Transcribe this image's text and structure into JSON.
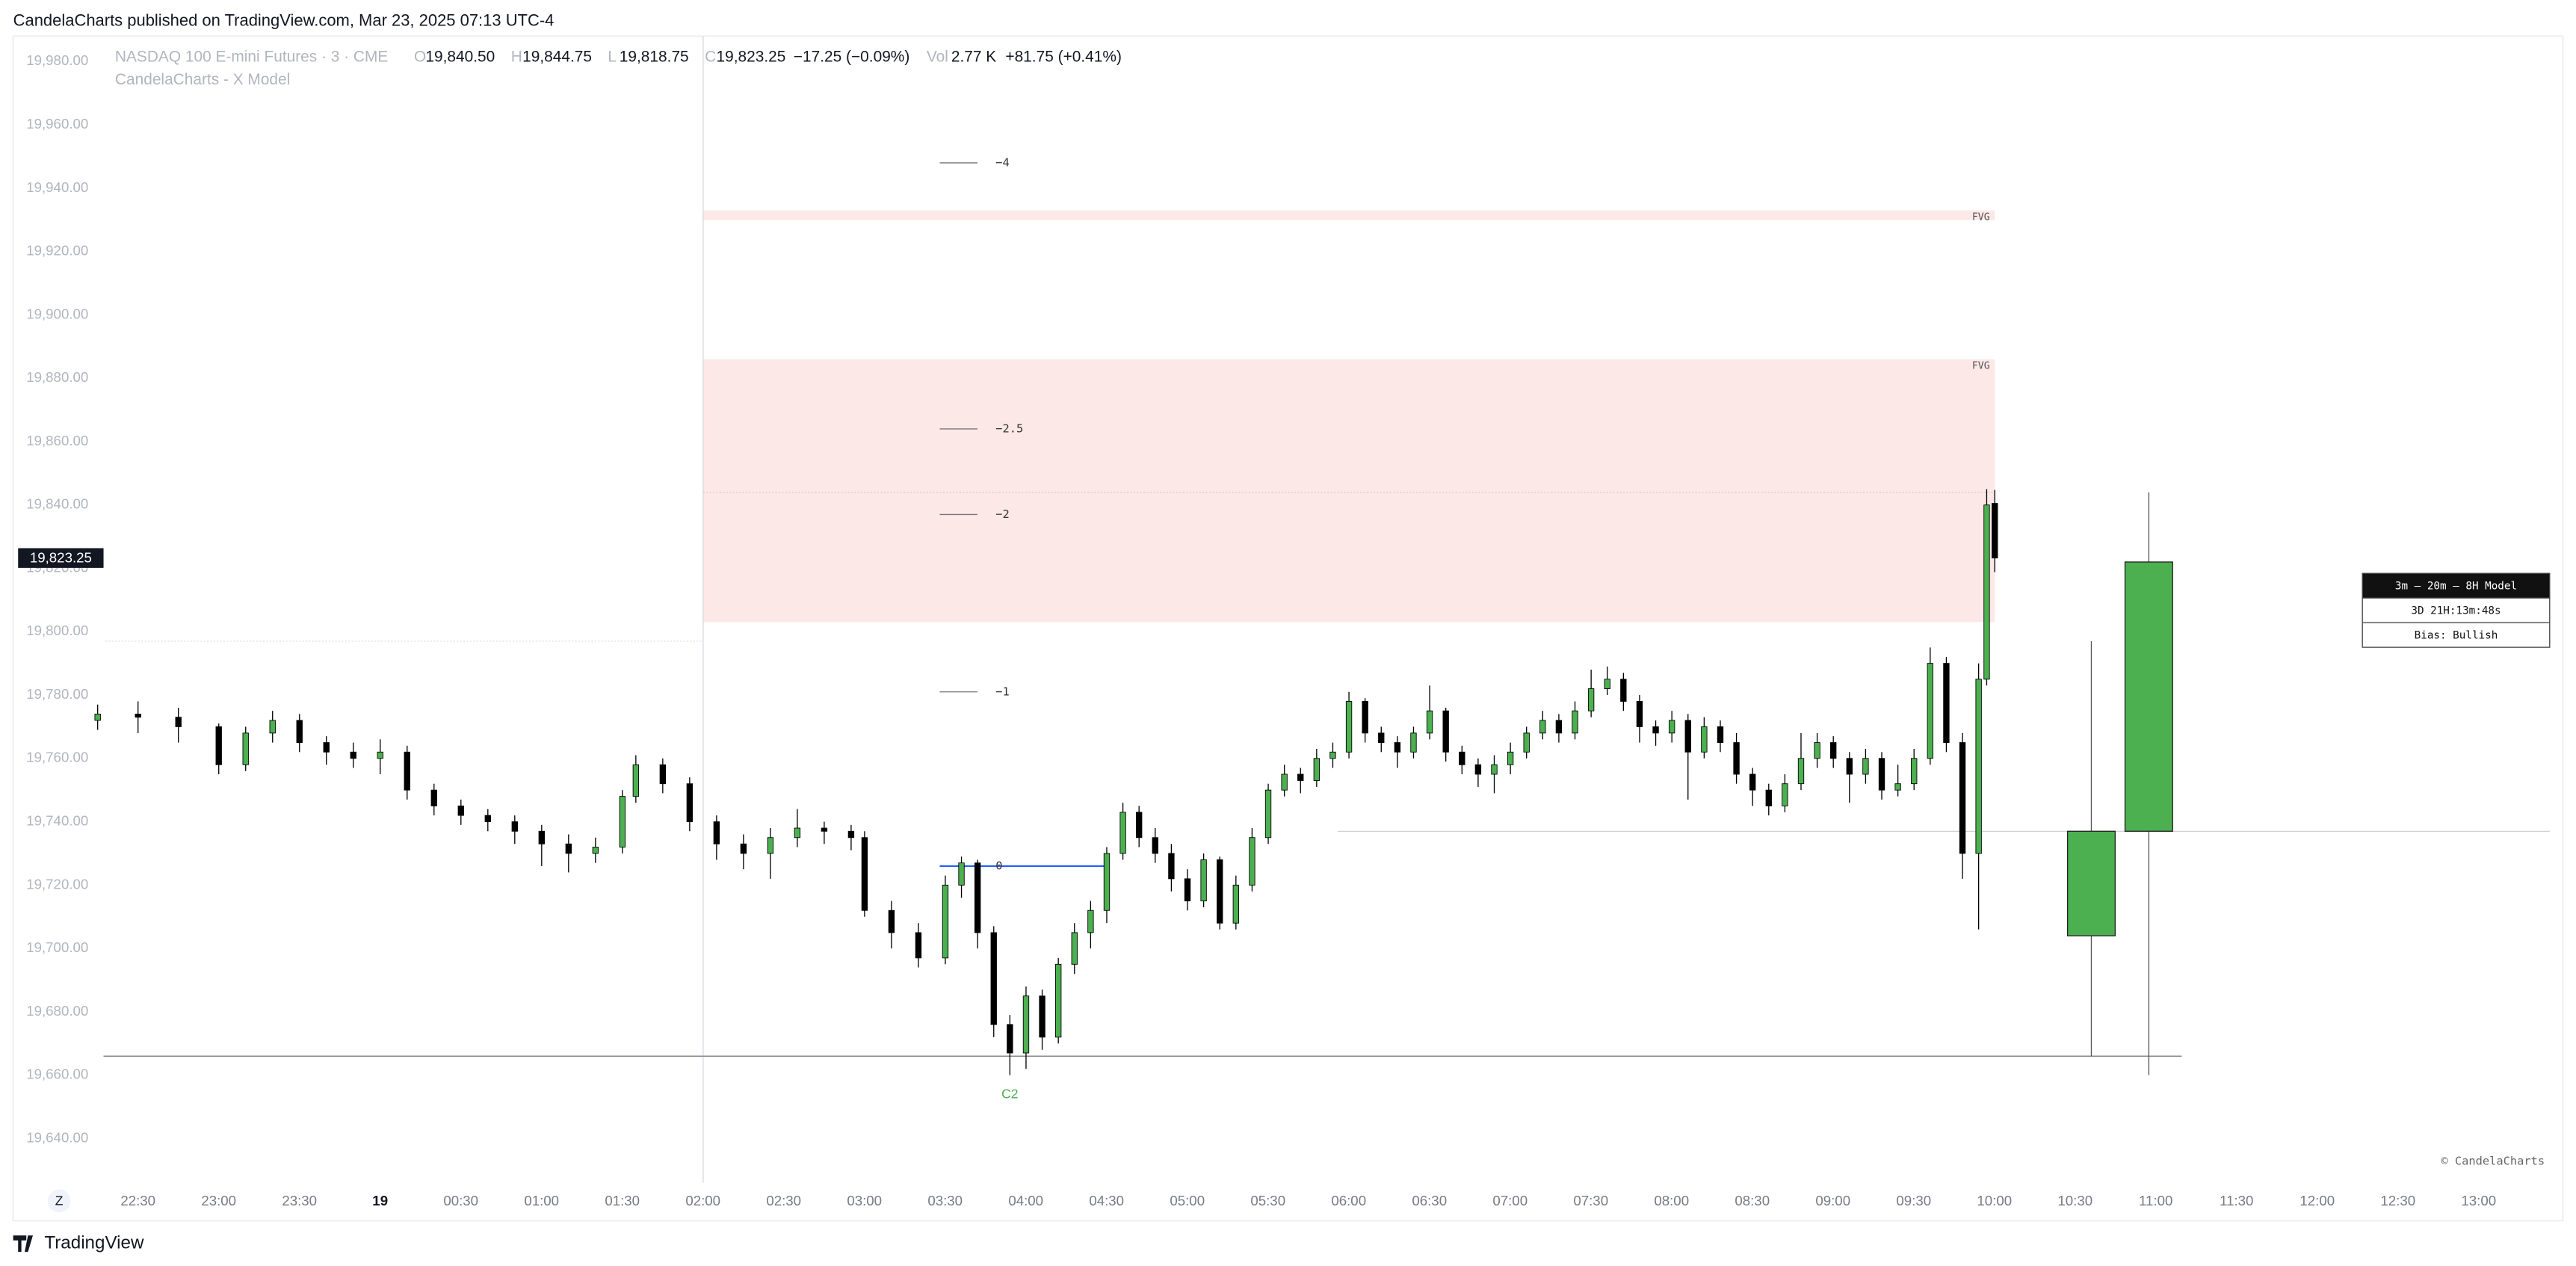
{
  "header": {
    "publisher": "CandelaCharts published on TradingView.com, Mar 23, 2025 07:13 UTC-4",
    "brand": "TradingView"
  },
  "chart_data": {
    "type": "candlestick",
    "symbol": "NASDAQ 100 E-mini Futures · 3 · CME",
    "indicator": "CandelaCharts - X Model",
    "ohlc_legend": [
      {
        "key": "O",
        "value": "19,840.50"
      },
      {
        "key": "H",
        "value": "19,844.75"
      },
      {
        "key": "L",
        "value": "19,818.75"
      },
      {
        "key": "C",
        "value": "19,823.25"
      }
    ],
    "change": "−17.25 (−0.09%)",
    "volume_key": "Vol",
    "volume": "2.77 K",
    "volume_change": "+81.75 (+0.41%)",
    "last_price": {
      "value": 19823.25,
      "label": "19,823.25"
    },
    "up_color": "#4caf50",
    "down_color": "#000000",
    "x": [
      "22:15",
      "22:30",
      "22:45",
      "23:00",
      "23:10",
      "23:20",
      "23:30",
      "23:40",
      "23:50",
      "00:00",
      "00:10",
      "00:20",
      "00:30",
      "00:40",
      "00:50",
      "01:00",
      "01:10",
      "01:20",
      "01:30",
      "01:35",
      "01:45",
      "01:55",
      "02:05",
      "02:15",
      "02:25",
      "02:35",
      "02:45",
      "02:55",
      "03:00",
      "03:10",
      "03:20",
      "03:30",
      "03:36",
      "03:42",
      "03:48",
      "03:54",
      "04:00",
      "04:06",
      "04:12",
      "04:18",
      "04:24",
      "04:30",
      "04:36",
      "04:42",
      "04:48",
      "04:54",
      "05:00",
      "05:06",
      "05:12",
      "05:18",
      "05:24",
      "05:30",
      "05:36",
      "05:42",
      "05:48",
      "05:54",
      "06:00",
      "06:06",
      "06:12",
      "06:18",
      "06:24",
      "06:30",
      "06:36",
      "06:42",
      "06:48",
      "06:54",
      "07:00",
      "07:06",
      "07:12",
      "07:18",
      "07:24",
      "07:30",
      "07:36",
      "07:42",
      "07:48",
      "07:54",
      "08:00",
      "08:06",
      "08:12",
      "08:18",
      "08:24",
      "08:30",
      "08:36",
      "08:42",
      "08:48",
      "08:54",
      "09:00",
      "09:06",
      "09:12",
      "09:18",
      "09:24",
      "09:30",
      "09:36",
      "09:42",
      "09:48",
      "09:54",
      "09:57",
      "10:00"
    ],
    "open": [
      19772,
      19774,
      19773,
      19770,
      19758,
      19768,
      19772,
      19765,
      19762,
      19760,
      19762,
      19750,
      19745,
      19742,
      19740,
      19737,
      19733,
      19730,
      19732,
      19748,
      19758,
      19752,
      19740,
      19733,
      19730,
      19735,
      19738,
      19737,
      19735,
      19712,
      19705,
      19697,
      19720,
      19727,
      19705,
      19676,
      19667,
      19685,
      19672,
      19695,
      19705,
      19712,
      19730,
      19743,
      19735,
      19730,
      19722,
      19715,
      19728,
      19708,
      19720,
      19735,
      19750,
      19755,
      19753,
      19760,
      19762,
      19778,
      19768,
      19765,
      19762,
      19768,
      19775,
      19762,
      19758,
      19755,
      19758,
      19762,
      19768,
      19772,
      19768,
      19775,
      19782,
      19785,
      19778,
      19770,
      19768,
      19772,
      19762,
      19770,
      19765,
      19755,
      19750,
      19745,
      19752,
      19760,
      19765,
      19760,
      19755,
      19760,
      19750,
      19752,
      19760,
      19790,
      19765,
      19730,
      19785,
      19840.5
    ],
    "high": [
      19777,
      19778,
      19776,
      19771,
      19770,
      19775,
      19774,
      19767,
      19765,
      19766,
      19764,
      19752,
      19747,
      19744,
      19742,
      19739,
      19736,
      19735,
      19750,
      19761,
      19760,
      19754,
      19742,
      19736,
      19738,
      19744,
      19740,
      19739,
      19737,
      19715,
      19708,
      19723,
      19729,
      19728,
      19707,
      19679,
      19688,
      19687,
      19697,
      19708,
      19715,
      19732,
      19746,
      19745,
      19738,
      19733,
      19725,
      19730,
      19729,
      19723,
      19738,
      19752,
      19758,
      19757,
      19763,
      19765,
      19781,
      19779,
      19770,
      19767,
      19770,
      19783,
      19776,
      19764,
      19760,
      19761,
      19765,
      19770,
      19775,
      19774,
      19778,
      19788,
      19789,
      19787,
      19780,
      19772,
      19775,
      19774,
      19773,
      19772,
      19768,
      19757,
      19752,
      19755,
      19768,
      19768,
      19767,
      19762,
      19763,
      19762,
      19758,
      19763,
      19795,
      19792,
      19768,
      19790,
      19845,
      19844.75
    ],
    "low": [
      19769,
      19768,
      19765,
      19755,
      19756,
      19765,
      19762,
      19758,
      19757,
      19755,
      19747,
      19742,
      19739,
      19737,
      19733,
      19726,
      19724,
      19727,
      19730,
      19746,
      19749,
      19737,
      19728,
      19725,
      19722,
      19732,
      19733,
      19731,
      19710,
      19700,
      19694,
      19695,
      19716,
      19700,
      19672,
      19660,
      19662,
      19668,
      19670,
      19692,
      19700,
      19708,
      19728,
      19732,
      19727,
      19718,
      19712,
      19713,
      19706,
      19706,
      19718,
      19733,
      19748,
      19749,
      19751,
      19757,
      19760,
      19765,
      19762,
      19757,
      19760,
      19766,
      19759,
      19755,
      19751,
      19749,
      19755,
      19760,
      19766,
      19765,
      19766,
      19773,
      19780,
      19775,
      19765,
      19764,
      19765,
      19747,
      19760,
      19762,
      19752,
      19745,
      19742,
      19743,
      19750,
      19757,
      19757,
      19746,
      19752,
      19747,
      19748,
      19750,
      19758,
      19762,
      19722,
      19706,
      19783,
      19818.75
    ],
    "close": [
      19774,
      19773,
      19770,
      19758,
      19768,
      19772,
      19765,
      19762,
      19760,
      19762,
      19750,
      19745,
      19742,
      19740,
      19737,
      19733,
      19730,
      19732,
      19748,
      19758,
      19752,
      19740,
      19733,
      19730,
      19735,
      19738,
      19737,
      19735,
      19712,
      19705,
      19697,
      19720,
      19727,
      19705,
      19676,
      19667,
      19685,
      19672,
      19695,
      19705,
      19712,
      19730,
      19743,
      19735,
      19730,
      19722,
      19715,
      19728,
      19708,
      19720,
      19735,
      19750,
      19755,
      19753,
      19760,
      19762,
      19778,
      19768,
      19765,
      19762,
      19768,
      19775,
      19762,
      19758,
      19755,
      19758,
      19762,
      19768,
      19772,
      19768,
      19775,
      19782,
      19785,
      19778,
      19770,
      19768,
      19772,
      19762,
      19770,
      19765,
      19755,
      19750,
      19745,
      19752,
      19760,
      19765,
      19760,
      19755,
      19760,
      19750,
      19752,
      19760,
      19790,
      19765,
      19730,
      19785,
      19840,
      19823.25
    ],
    "htf_candles": {
      "open": [
        19704,
        19737
      ],
      "high": [
        19797,
        19844
      ],
      "low": [
        19666,
        19660
      ],
      "close": [
        19737,
        19822
      ]
    },
    "fvg": [
      {
        "label": "FVG",
        "top": 19933,
        "bottom": 19930,
        "start": "02:00",
        "end": "10:00"
      },
      {
        "label": "FVG",
        "top": 19886,
        "bottom": 19803,
        "start": "02:00",
        "end": "10:00"
      }
    ],
    "levels": [
      {
        "label": "−4",
        "value": 19948
      },
      {
        "label": "−2.5",
        "value": 19864
      },
      {
        "label": "−2",
        "value": 19837
      },
      {
        "label": "−1",
        "value": 19781
      },
      {
        "label": "0",
        "value": 19726
      }
    ],
    "low_line": 19666,
    "annotation": "C2",
    "ylim": [
      19626,
      19988
    ],
    "yticks": [
      {
        "value": 19640,
        "label": "19,640.00"
      },
      {
        "value": 19660,
        "label": "19,660.00"
      },
      {
        "value": 19680,
        "label": "19,680.00"
      },
      {
        "value": 19700,
        "label": "19,700.00"
      },
      {
        "value": 19720,
        "label": "19,720.00"
      },
      {
        "value": 19740,
        "label": "19,740.00"
      },
      {
        "value": 19760,
        "label": "19,760.00"
      },
      {
        "value": 19780,
        "label": "19,780.00"
      },
      {
        "value": 19800,
        "label": "19,800.00"
      },
      {
        "value": 19820,
        "label": "19,820.00"
      },
      {
        "value": 19840,
        "label": "19,840.00"
      },
      {
        "value": 19860,
        "label": "19,860.00"
      },
      {
        "value": 19880,
        "label": "19,880.00"
      },
      {
        "value": 19900,
        "label": "19,900.00"
      },
      {
        "value": 19920,
        "label": "19,920.00"
      },
      {
        "value": 19940,
        "label": "19,940.00"
      },
      {
        "value": 19960,
        "label": "19,960.00"
      },
      {
        "value": 19980,
        "label": "19,980.00"
      }
    ],
    "xticks": [
      "22:30",
      "23:00",
      "23:30",
      "19",
      "00:30",
      "01:00",
      "01:30",
      "02:00",
      "02:30",
      "03:00",
      "03:30",
      "04:00",
      "04:30",
      "05:00",
      "05:30",
      "06:00",
      "06:30",
      "07:00",
      "07:30",
      "08:00",
      "08:30",
      "09:00",
      "09:30",
      "10:00",
      "10:30",
      "11:00",
      "11:30",
      "12:00",
      "12:30",
      "13:00"
    ],
    "corner_table": [
      "3m – 20m – 8H Model",
      "3D 21H:13m:48s",
      "Bias: Bullish"
    ],
    "watermark": "© CandelaCharts",
    "axis_button": "Z"
  }
}
